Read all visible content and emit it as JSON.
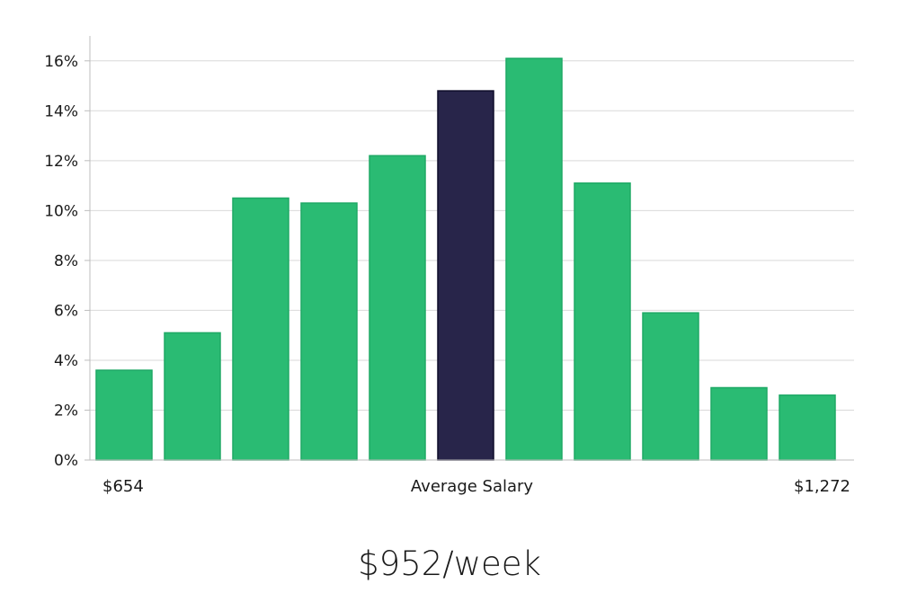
{
  "chart_data": {
    "type": "bar",
    "values": [
      3.6,
      5.1,
      10.5,
      10.3,
      12.2,
      14.8,
      16.1,
      11.1,
      5.9,
      2.9,
      2.6
    ],
    "highlight_index": 5,
    "colors": {
      "bar": "#2abb73",
      "highlight": "#28254a",
      "grid": "#d9d9d9",
      "axis": "#bdbdbd"
    },
    "ylim": [
      0,
      17
    ],
    "yticks": [
      {
        "value": 0,
        "label": "0%"
      },
      {
        "value": 2,
        "label": "2%"
      },
      {
        "value": 4,
        "label": "4%"
      },
      {
        "value": 6,
        "label": "6%"
      },
      {
        "value": 8,
        "label": "8%"
      },
      {
        "value": 10,
        "label": "10%"
      },
      {
        "value": 12,
        "label": "12%"
      },
      {
        "value": 14,
        "label": "14%"
      },
      {
        "value": 16,
        "label": "16%"
      }
    ],
    "grid": true,
    "x_labels": {
      "min": "$654",
      "center": "Average Salary",
      "max": "$1,272"
    }
  },
  "summary": "$952/week"
}
